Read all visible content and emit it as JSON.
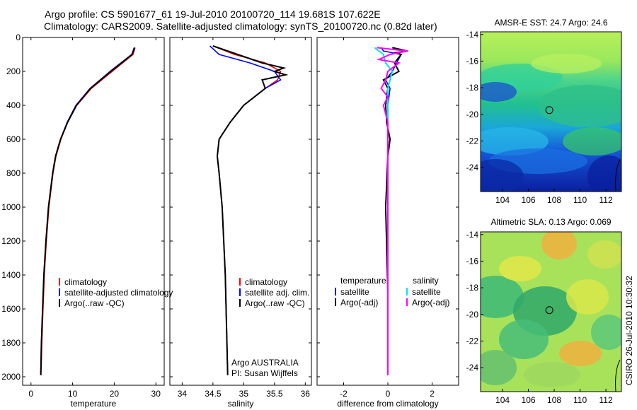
{
  "header": {
    "line1": "Argo profile: CS 5901677_61 19-Jul-2010 20100720_114 19.681S 107.622E",
    "line2": "Climatology: CARS2009. Satellite-adjusted climatology: synTS_20100720.nc (0.82d later)"
  },
  "footer_stamp": "CSIRO 26-Jul-2010 10:30:32",
  "colors": {
    "climatology": "#ff0000",
    "satellite": "#0000ff",
    "argo": "#000000",
    "sat_salinity": "#00e5e5",
    "argo_salinity": "#ff00ff"
  },
  "chart_data": [
    {
      "type": "line",
      "id": "temperature",
      "xlabel": "temperature",
      "xlim": [
        -2,
        32
      ],
      "ylim": [
        2050,
        0
      ],
      "xticks": [
        "0",
        "10",
        "20",
        "30"
      ],
      "yticks": [
        "0",
        "200",
        "400",
        "600",
        "800",
        "1000",
        "1200",
        "1400",
        "1600",
        "1800",
        "2000"
      ],
      "legend": [
        "climatology",
        "satellite-adjusted climatology",
        "Argo(..raw -QC)"
      ],
      "series": [
        {
          "name": "climatology",
          "pressure": [
            60,
            100,
            200,
            300,
            400,
            500,
            600,
            700,
            800,
            1000,
            1200,
            1400,
            1600,
            1800,
            1990
          ],
          "values": [
            25,
            24.5,
            19.5,
            14.5,
            11,
            8.8,
            7.2,
            6.0,
            5.3,
            4.3,
            3.7,
            3.2,
            2.9,
            2.6,
            2.4
          ]
        },
        {
          "name": "satellite-adjusted climatology",
          "pressure": [
            60,
            100,
            200,
            300,
            400,
            500,
            600,
            700,
            800,
            1000,
            1200,
            1400,
            1600,
            1800,
            1990
          ],
          "values": [
            24.8,
            24.2,
            19,
            14.2,
            10.8,
            8.7,
            7.1,
            5.9,
            5.2,
            4.2,
            3.6,
            3.1,
            2.8,
            2.5,
            2.35
          ]
        },
        {
          "name": "Argo(..raw -QC)",
          "pressure": [
            60,
            100,
            200,
            300,
            400,
            500,
            600,
            700,
            800,
            1000,
            1200,
            1400,
            1600,
            1800,
            1990
          ],
          "values": [
            24.9,
            24.3,
            19.2,
            14.3,
            10.9,
            8.8,
            7.1,
            5.9,
            5.2,
            4.2,
            3.6,
            3.1,
            2.8,
            2.5,
            2.35
          ]
        }
      ]
    },
    {
      "type": "line",
      "id": "salinity",
      "xlabel": "salinity",
      "xlim": [
        33.8,
        36.1
      ],
      "ylim": [
        2050,
        0
      ],
      "xticks": [
        "34",
        "34.5",
        "35",
        "35.5",
        "36"
      ],
      "legend": [
        "climatology",
        "satellite adj. clim.",
        "Argo(..raw -QC)"
      ],
      "annotation": [
        "Argo AUSTRALIA",
        "PI: Susan Wijffels"
      ],
      "series": [
        {
          "name": "climatology",
          "pressure": [
            50,
            100,
            150,
            200,
            250,
            300,
            400,
            500,
            600,
            700,
            800,
            1000,
            1400,
            1990
          ],
          "values": [
            34.5,
            34.85,
            35.35,
            35.6,
            35.55,
            35.35,
            35.0,
            34.78,
            34.6,
            34.57,
            34.6,
            34.65,
            34.7,
            34.74
          ]
        },
        {
          "name": "satellite adj. clim.",
          "pressure": [
            50,
            100,
            150,
            200,
            250,
            300,
            400,
            500,
            600,
            700,
            800,
            1000,
            1400,
            1990
          ],
          "values": [
            34.45,
            34.6,
            35.1,
            35.5,
            35.6,
            35.35,
            35.0,
            34.78,
            34.6,
            34.57,
            34.6,
            34.65,
            34.7,
            34.74
          ]
        },
        {
          "name": "Argo(..raw -QC)",
          "pressure": [
            50,
            100,
            150,
            180,
            200,
            220,
            250,
            300,
            400,
            500,
            600,
            700,
            800,
            1000,
            1400,
            1990
          ],
          "values": [
            34.5,
            34.9,
            35.3,
            35.65,
            35.5,
            35.68,
            35.3,
            35.35,
            35.0,
            34.78,
            34.6,
            34.57,
            34.6,
            34.65,
            34.7,
            34.74
          ]
        }
      ]
    },
    {
      "type": "line",
      "id": "difference",
      "xlabel": "difference from climatology",
      "xlim": [
        -3.2,
        3.2
      ],
      "ylim": [
        2050,
        0
      ],
      "xticks": [
        "-2",
        "0",
        "2"
      ],
      "legend_left": [
        "temperature",
        "satellite",
        "Argo(-adj)"
      ],
      "legend_right": [
        "salinity",
        "satellite",
        "Argo(-adj)"
      ],
      "series": [
        {
          "name": "temperature satellite",
          "pressure": [
            60,
            80,
            100,
            150,
            200,
            250,
            300,
            400,
            500,
            700,
            1000,
            1500,
            1990
          ],
          "values": [
            -0.3,
            -0.2,
            0.6,
            0.4,
            0.2,
            -0.1,
            0.1,
            0.0,
            0.0,
            0.0,
            0.0,
            0.0,
            0.0
          ]
        },
        {
          "name": "temperature Argo(-adj)",
          "pressure": [
            60,
            80,
            90,
            100,
            150,
            200,
            250,
            300,
            400,
            500,
            600,
            700,
            1000,
            1500,
            1990
          ],
          "values": [
            0.2,
            0.9,
            0.3,
            0.6,
            0.3,
            0.5,
            -0.2,
            0.0,
            -0.1,
            -0.05,
            0.1,
            0.0,
            -0.1,
            0.0,
            0.0
          ]
        },
        {
          "name": "salinity satellite",
          "pressure": [
            60,
            80,
            100,
            150,
            200,
            250,
            300,
            400,
            500,
            700,
            1000,
            1500,
            1990
          ],
          "values": [
            -0.6,
            -0.4,
            -0.2,
            -0.1,
            0.2,
            0.1,
            0.0,
            0.0,
            0.0,
            0.0,
            0.0,
            0.0,
            0.0
          ]
        },
        {
          "name": "salinity Argo(-adj)",
          "pressure": [
            60,
            80,
            100,
            130,
            150,
            200,
            250,
            300,
            350,
            400,
            500,
            700,
            1000,
            1500,
            1990
          ],
          "values": [
            -0.5,
            0.9,
            0.1,
            -0.4,
            0.5,
            0.0,
            -0.1,
            -0.3,
            0.0,
            -0.2,
            0.0,
            0.0,
            0.0,
            0.0,
            0.0
          ]
        }
      ]
    },
    {
      "type": "heatmap",
      "id": "sst-map",
      "title": "AMSR-E SST: 24.7 Argo: 24.6",
      "xlim": [
        102.3,
        113.2
      ],
      "ylim": [
        -25.8,
        -13.8
      ],
      "xticks": [
        "104",
        "106",
        "108",
        "110",
        "112"
      ],
      "yticks": [
        "-14",
        "-16",
        "-18",
        "-20",
        "-22",
        "-24"
      ],
      "marker": {
        "lon": 107.62,
        "lat": -19.68
      }
    },
    {
      "type": "heatmap",
      "id": "sla-map",
      "title": "Altimetric SLA: 0.13 Argo: 0.069",
      "xlim": [
        102.3,
        113.2
      ],
      "ylim": [
        -25.8,
        -13.8
      ],
      "xticks": [
        "104",
        "106",
        "108",
        "110",
        "112"
      ],
      "yticks": [
        "-14",
        "-16",
        "-18",
        "-20",
        "-22",
        "-24"
      ],
      "marker": {
        "lon": 107.62,
        "lat": -19.68
      }
    }
  ]
}
